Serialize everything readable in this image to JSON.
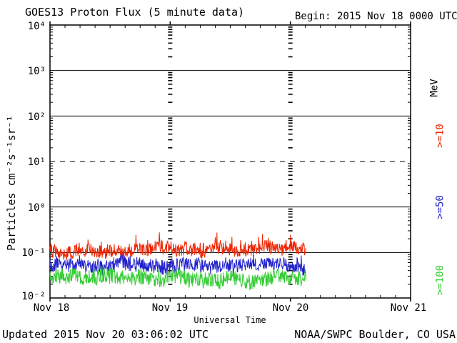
{
  "header": {
    "begin": "Begin: 2015 Nov 18 0000 UTC"
  },
  "footer": {
    "updated": "Updated 2015 Nov 20 03:06:02 UTC",
    "source": "NOAA/SWPC Boulder, CO USA"
  },
  "chart_data": {
    "type": "line",
    "title": "GOES13 Proton Flux (5 minute data)",
    "xlabel": "Universal Time",
    "ylabel": "Particles cm⁻²s⁻¹sr⁻¹",
    "unit_label": "MeV",
    "y_scale": "log10",
    "y_log_range": [
      -2,
      4
    ],
    "y_tick_labels": [
      "10⁴",
      "10³",
      "10²",
      "10¹",
      "10⁰",
      "10⁻¹",
      "10⁻²"
    ],
    "x_tick_labels": [
      "Nov 18",
      "Nov 19",
      "Nov 20",
      "Nov 21"
    ],
    "x_range_days": 3,
    "x_minor_tick_hours": 3,
    "sample_interval_minutes": 5,
    "data_end_day": 2.13,
    "grid": {
      "solid_decades": [
        3,
        2,
        0,
        -1
      ],
      "dashed_decades": [
        1
      ],
      "day_dash_columns": [
        1,
        2
      ]
    },
    "series": [
      {
        "label": ">=10",
        "unit": "MeV",
        "color": "#ee2200",
        "typical_flux": 0.12,
        "flux_range": [
          0.07,
          0.3
        ],
        "log10_base": -0.93,
        "log10_noise": 0.15,
        "spike_prob": 0.09,
        "spike_log10": 0.24,
        "seed": 101
      },
      {
        "label": ">=50",
        "unit": "MeV",
        "color": "#2222cc",
        "typical_flux": 0.055,
        "flux_range": [
          0.03,
          0.1
        ],
        "log10_base": -1.27,
        "log10_noise": 0.16,
        "spike_prob": 0.04,
        "spike_log10": 0.12,
        "seed": 202
      },
      {
        "label": ">=100",
        "unit": "MeV",
        "color": "#33cc33",
        "typical_flux": 0.03,
        "flux_range": [
          0.015,
          0.06
        ],
        "log10_base": -1.56,
        "log10_noise": 0.17,
        "spike_prob": 0.03,
        "spike_log10": 0.1,
        "seed": 303
      }
    ]
  }
}
